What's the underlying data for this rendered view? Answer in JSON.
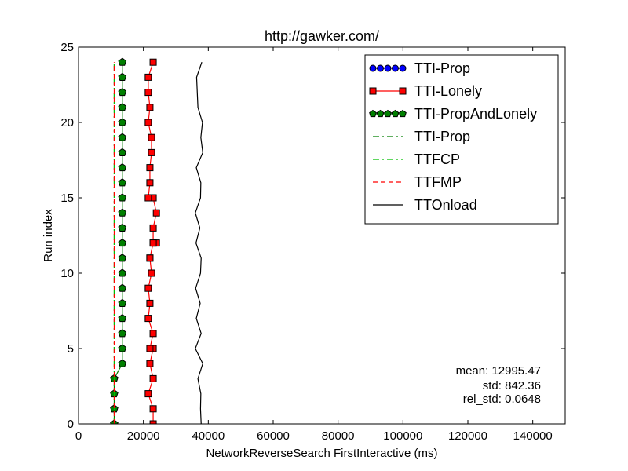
{
  "chart_data": {
    "type": "line",
    "title": "http://gawker.com/",
    "xlabel": "NetworkReverseSearch FirstInteractive (ms)",
    "ylabel": "Run index",
    "xlim": [
      0,
      150000
    ],
    "ylim": [
      0,
      25
    ],
    "xticks": [
      0,
      20000,
      40000,
      60000,
      80000,
      100000,
      120000,
      140000
    ],
    "xtick_labels": [
      "0",
      "20000",
      "40000",
      "60000",
      "80000",
      "100000",
      "120000",
      "140000"
    ],
    "yticks": [
      0,
      5,
      10,
      15,
      20,
      25
    ],
    "ytick_labels": [
      "0",
      "5",
      "10",
      "15",
      "20",
      "25"
    ],
    "grid": false,
    "legend_position": "top-right",
    "series": [
      {
        "name": "TTI-Prop",
        "style": "line-marker",
        "marker": "circle",
        "color": "#0000ff",
        "x": [],
        "y": []
      },
      {
        "name": "TTI-Lonely",
        "style": "line-marker",
        "marker": "square",
        "color": "#ff0000",
        "x": [
          23000,
          23000,
          21500,
          23000,
          22000,
          23000,
          22000,
          23000,
          21500,
          22000,
          21500,
          22500,
          22000,
          22000,
          23000,
          24000,
          23000,
          23000,
          24000,
          23000,
          21500,
          22000,
          22000,
          22500,
          22500,
          21500,
          22000,
          21500,
          21500,
          23000
        ],
        "y": [
          0,
          1,
          2,
          3,
          4,
          5,
          5,
          6,
          7,
          8,
          9,
          10,
          11,
          11,
          12,
          12,
          12,
          13,
          14,
          15,
          15,
          16,
          17,
          18,
          19,
          20,
          21,
          22,
          23,
          24
        ]
      },
      {
        "name": "TTI-PropAndLonely",
        "style": "line-marker",
        "marker": "pentagon",
        "color": "#007f00",
        "x": [
          11000,
          11000,
          11000,
          11000,
          13500,
          13500,
          13500,
          13500,
          13500,
          13500,
          13500,
          13500,
          13500,
          13500,
          13500,
          13500,
          13500,
          13500,
          13500,
          13500,
          13500,
          13500,
          13500,
          13500,
          13500
        ],
        "y": [
          0,
          1,
          2,
          3,
          4,
          5,
          6,
          7,
          8,
          9,
          10,
          11,
          12,
          13,
          14,
          15,
          16,
          17,
          18,
          19,
          20,
          21,
          22,
          23,
          24
        ]
      },
      {
        "name": "TTI-Prop",
        "style": "dash-dot",
        "color": "#007f00",
        "x": [
          11000,
          11000
        ],
        "y": [
          0,
          24
        ]
      },
      {
        "name": "TTFCP",
        "style": "dash-dot",
        "color": "#00bf00",
        "x": [
          11000,
          11000
        ],
        "y": [
          0,
          24
        ]
      },
      {
        "name": "TTFMP",
        "style": "dashed",
        "color": "#ff0000",
        "x": [
          11000,
          11000
        ],
        "y": [
          0,
          24
        ]
      },
      {
        "name": "TTOnload",
        "style": "solid",
        "color": "#000000",
        "x": [
          37800,
          37600,
          37700,
          36800,
          38300,
          36000,
          37800,
          36300,
          37500,
          36100,
          37600,
          37800,
          36200,
          37400,
          36000,
          37600,
          37700,
          36300,
          38300,
          37700,
          38200,
          36800,
          36600,
          36400,
          38000
        ],
        "y": [
          0,
          1,
          2,
          3,
          4,
          5,
          6,
          7,
          8,
          9,
          10,
          11,
          12,
          13,
          14,
          15,
          16,
          17,
          18,
          19,
          20,
          21,
          22,
          23,
          24
        ]
      }
    ],
    "annotations": [
      "mean: 12995.47",
      "std: 842.36",
      "rel_std: 0.0648"
    ]
  }
}
